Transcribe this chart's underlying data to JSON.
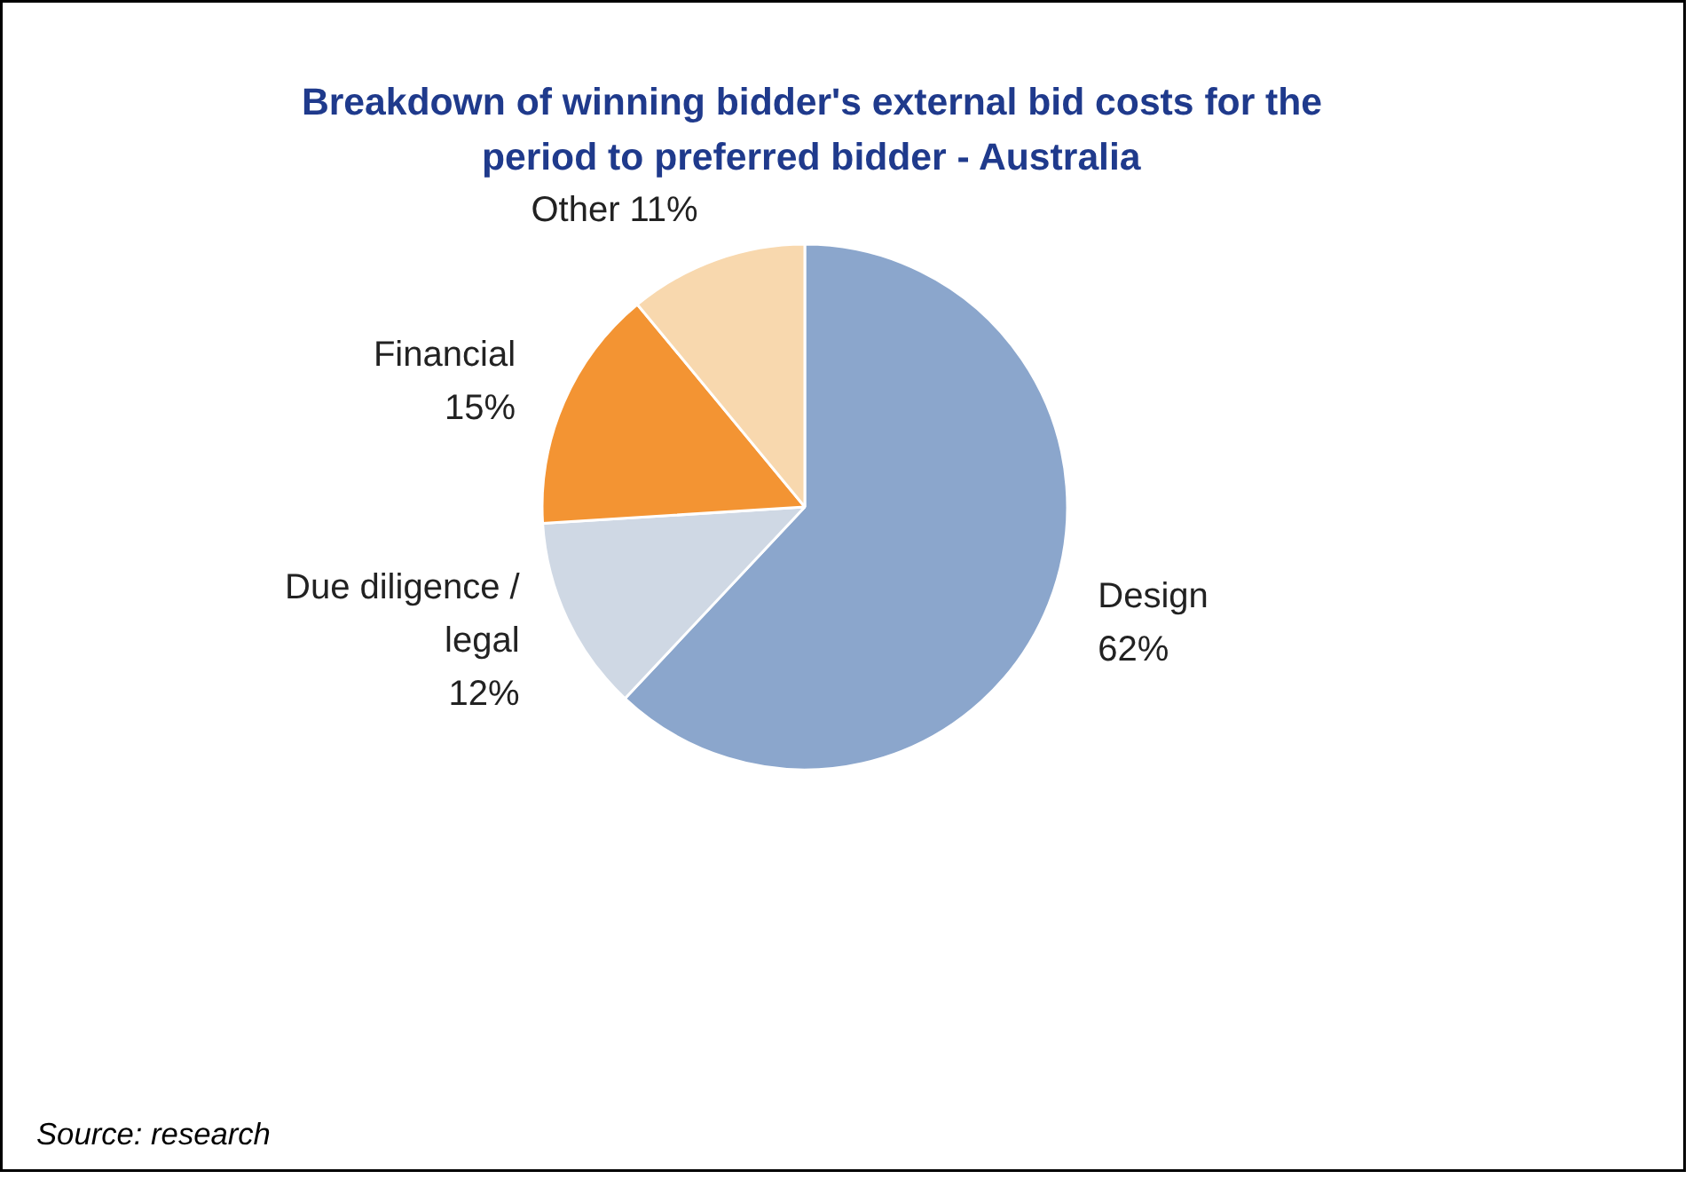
{
  "chart_data": {
    "type": "pie",
    "title": "Breakdown of winning bidder's external bid costs for the period to preferred bidder - Australia",
    "categories": [
      "Design",
      "Due diligence / legal",
      "Financial",
      "Other"
    ],
    "values": [
      62,
      12,
      15,
      11
    ],
    "value_labels": [
      "62%",
      "12%",
      "15%",
      "11%"
    ],
    "colors": [
      "#8ba6cc",
      "#cfd8e4",
      "#f39433",
      "#f8d8ae"
    ],
    "annotations": [
      "Source: research"
    ]
  }
}
